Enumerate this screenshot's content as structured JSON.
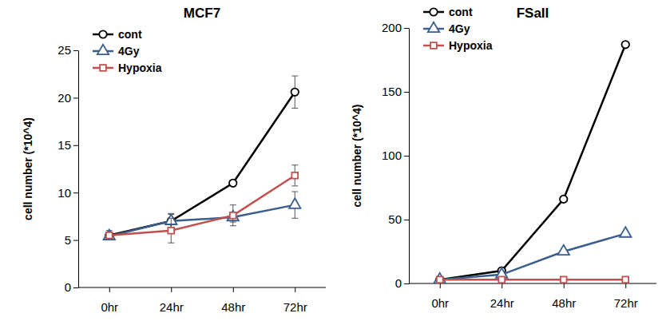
{
  "chart_data": [
    {
      "type": "line",
      "title": "MCF7",
      "y_label": "cell number (*10^4)",
      "categories": [
        "0hr",
        "24hr",
        "48hr",
        "72hr"
      ],
      "ylim": [
        0,
        25
      ],
      "yticks": [
        0,
        5,
        10,
        15,
        20,
        25
      ],
      "legend": "upper left",
      "series": [
        {
          "name": "cont",
          "color": "#000000",
          "marker": "circle",
          "values": [
            5.5,
            7.0,
            11.0,
            20.6
          ],
          "errors": [
            0.5,
            0.7,
            0.3,
            1.7
          ]
        },
        {
          "name": "4Gy",
          "color": "#3b5e8c",
          "marker": "triangle",
          "values": [
            5.4,
            7.0,
            7.4,
            8.7
          ],
          "errors": [
            0.3,
            0.8,
            0.5,
            1.4
          ]
        },
        {
          "name": "Hypoxia",
          "color": "#c0504d",
          "marker": "square",
          "values": [
            5.5,
            6.0,
            7.6,
            11.8
          ],
          "errors": [
            0.3,
            1.3,
            1.1,
            1.1
          ]
        }
      ]
    },
    {
      "type": "line",
      "title": "FSaII",
      "y_label": "cell number (*10^4)",
      "categories": [
        "0hr",
        "24hr",
        "48hr",
        "72hr"
      ],
      "ylim": [
        0,
        200
      ],
      "yticks": [
        0,
        50,
        100,
        150,
        200
      ],
      "legend": "upper left",
      "series": [
        {
          "name": "cont",
          "color": "#000000",
          "marker": "circle",
          "values": [
            3,
            10,
            66,
            187
          ]
        },
        {
          "name": "4Gy",
          "color": "#3b5e8c",
          "marker": "triangle",
          "values": [
            3,
            7,
            25,
            39
          ]
        },
        {
          "name": "Hypoxia",
          "color": "#c0504d",
          "marker": "square",
          "values": [
            3,
            3,
            3,
            3
          ]
        }
      ]
    }
  ]
}
